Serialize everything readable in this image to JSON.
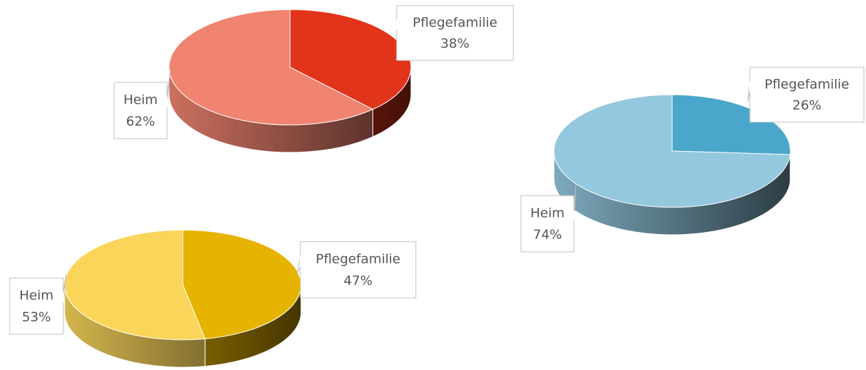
{
  "chart_data": [
    {
      "type": "pie",
      "categories": [
        "Pflegefamilie",
        "Heim"
      ],
      "values": [
        38,
        62
      ],
      "value_labels": [
        "38%",
        "62%"
      ],
      "colors": [
        "#e2341a",
        "#f08470"
      ]
    },
    {
      "type": "pie",
      "categories": [
        "Pflegefamilie",
        "Heim"
      ],
      "values": [
        26,
        74
      ],
      "value_labels": [
        "26%",
        "74%"
      ],
      "colors": [
        "#4aa6ca",
        "#93c8de"
      ]
    },
    {
      "type": "pie",
      "categories": [
        "Pflegefamilie",
        "Heim"
      ],
      "values": [
        47,
        53
      ],
      "value_labels": [
        "47%",
        "53%"
      ],
      "colors": [
        "#e6b400",
        "#f9d55a"
      ]
    }
  ]
}
